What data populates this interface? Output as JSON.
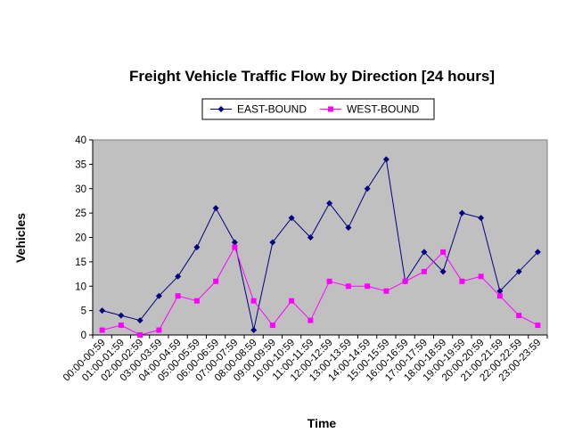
{
  "chart_data": {
    "type": "line",
    "title": "Freight Vehicle Traffic Flow by Direction [24 hours]",
    "xlabel": "Time",
    "ylabel": "Vehicles",
    "ylim": [
      0,
      40
    ],
    "yticks": [
      0,
      5,
      10,
      15,
      20,
      25,
      30,
      35,
      40
    ],
    "grid": false,
    "legend_position": "top",
    "plot_background": "#c0c0c0",
    "categories": [
      "00:00-00:59",
      "01:00-01:59",
      "02:00-02:59",
      "03:00-03:59",
      "04:00-04:59",
      "05:00-05:59",
      "06:00-06:59",
      "07:00-07:59",
      "08:00-08:59",
      "09:00-09:59",
      "10:00-10:59",
      "11:00-11:59",
      "12:00-12:59",
      "13:00-13:59",
      "14:00-14:59",
      "15:00-15:59",
      "16:00-16:59",
      "17:00-17:59",
      "18:00-18:59",
      "19:00-19:59",
      "20:00-20:59",
      "21:00-21:59",
      "22:00-22:59",
      "23:00-23:59"
    ],
    "series": [
      {
        "name": "EAST-BOUND",
        "color": "#000080",
        "marker": "diamond",
        "values": [
          5,
          4,
          3,
          8,
          12,
          18,
          26,
          19,
          1,
          19,
          24,
          20,
          27,
          22,
          30,
          36,
          11,
          17,
          13,
          25,
          24,
          9,
          13,
          17
        ]
      },
      {
        "name": "WEST-BOUND",
        "color": "#ff00ff",
        "marker": "square",
        "values": [
          1,
          2,
          0,
          1,
          8,
          7,
          11,
          18,
          7,
          2,
          7,
          3,
          11,
          10,
          10,
          9,
          11,
          13,
          17,
          11,
          12,
          8,
          4,
          2
        ]
      }
    ]
  }
}
